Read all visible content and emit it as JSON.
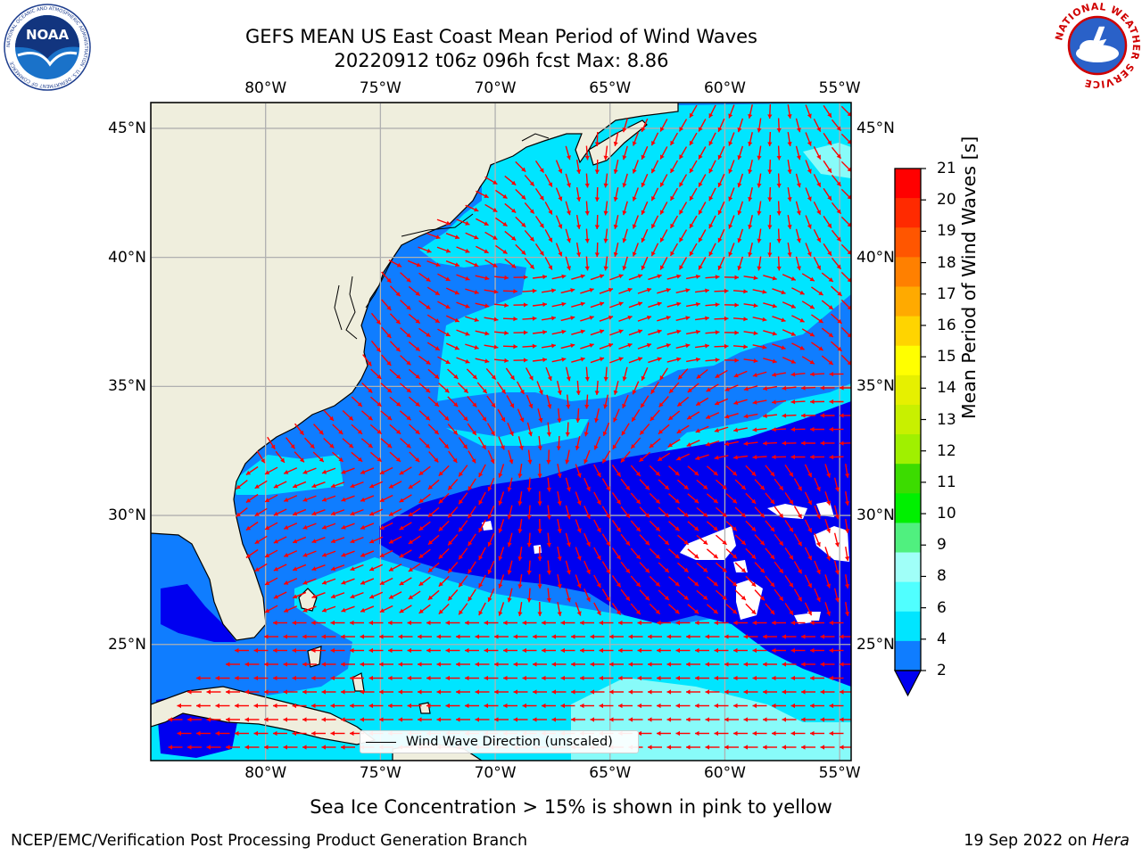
{
  "title": {
    "line1": "GEFS MEAN US East Coast Mean Period of Wind Waves",
    "line2": "20220912 t06z 096h fcst   Max: 8.86"
  },
  "logos": {
    "left": {
      "text": "NOAA",
      "ring_text": "NATIONAL OCEANIC AND ATMOSPHERIC ADMINISTRATION · U.S. DEPARTMENT OF COMMERCE"
    },
    "right": {
      "ring_text": "NATIONAL WEATHER SERVICE"
    }
  },
  "map": {
    "lon_labels": [
      "80°W",
      "75°W",
      "70°W",
      "65°W",
      "60°W",
      "55°W"
    ],
    "lat_labels": [
      "45°N",
      "40°N",
      "35°N",
      "30°N",
      "25°N"
    ],
    "lon_range": [
      -85,
      -54.5
    ],
    "lat_range": [
      20.5,
      46
    ],
    "legend_label": "Wind Wave Direction (unscaled)",
    "colors": {
      "land": "#efeedd",
      "class_2_4": "#0f7dff",
      "class_4_6": "#00e5ff",
      "class_lt_2": "#0000f0",
      "arrow": "#ff0000",
      "grid": "#b0b0b0"
    }
  },
  "colorbar": {
    "title": "Mean Period of Wind Waves [s]",
    "ticks": [
      "21",
      "20",
      "19",
      "18",
      "17",
      "16",
      "15",
      "14",
      "13",
      "12",
      "11",
      "10",
      "9",
      "8",
      "6",
      "4",
      "2"
    ],
    "colors": [
      "#ff0000",
      "#ff2a00",
      "#ff5600",
      "#ff8000",
      "#ffaa00",
      "#ffd400",
      "#ffff00",
      "#e6f000",
      "#c8f000",
      "#a0f000",
      "#3cdc00",
      "#00f000",
      "#50f07f",
      "#a0fff8",
      "#50ffff",
      "#00e5ff",
      "#0f7dff"
    ],
    "extend_color": "#0000f0"
  },
  "footer": {
    "note": "Sea Ice Concentration > 15% is shown in pink to yellow",
    "left": "NCEP/EMC/Verification Post Processing Product Generation Branch",
    "right_prefix": "19 Sep 2022 on ",
    "right_machine": "Hera"
  }
}
